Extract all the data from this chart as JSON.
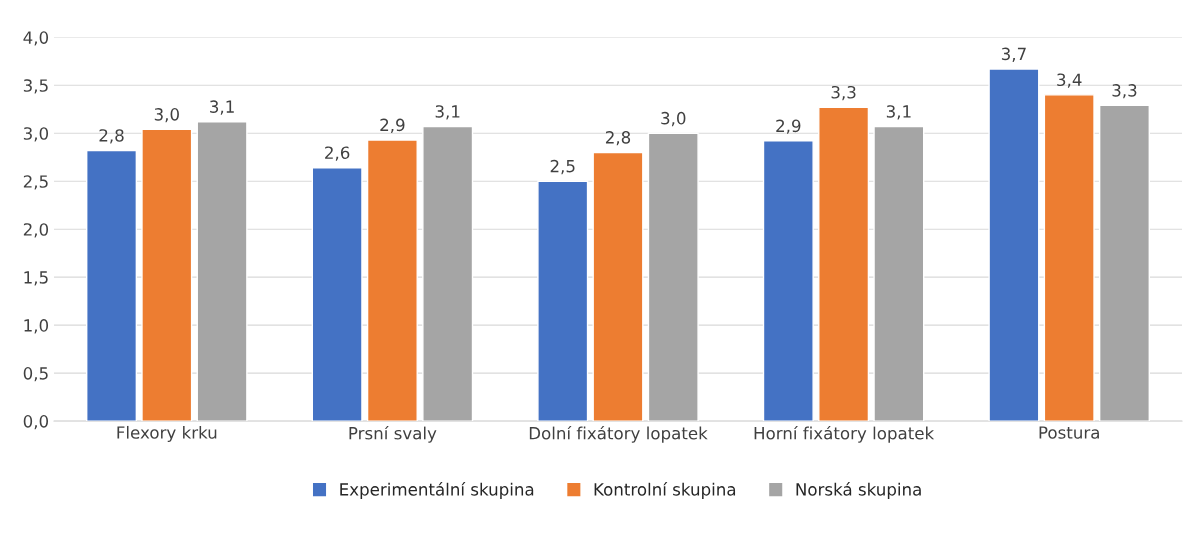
{
  "chart_data": {
    "type": "bar",
    "categories": [
      "Flexory krku",
      "Prsní svaly",
      "Dolní fixátory lopatek",
      "Horní fixátory lopatek",
      "Postura"
    ],
    "series": [
      {
        "name": "Experimentální skupina",
        "color": "#4472c4",
        "values": [
          2.82,
          2.64,
          2.5,
          2.92,
          3.67
        ],
        "value_labels": [
          "2,8",
          "2,6",
          "2,5",
          "2,9",
          "3,7"
        ]
      },
      {
        "name": "Kontrolní skupina",
        "color": "#ed7d31",
        "values": [
          3.04,
          2.93,
          2.8,
          3.27,
          3.4
        ],
        "value_labels": [
          "3,0",
          "2,9",
          "2,8",
          "3,3",
          "3,4"
        ]
      },
      {
        "name": "Norská skupina",
        "color": "#a5a5a5",
        "values": [
          3.12,
          3.07,
          3.0,
          3.07,
          3.29
        ],
        "value_labels": [
          "3,1",
          "3,1",
          "3,0",
          "3,1",
          "3,3"
        ]
      }
    ],
    "ylim": [
      0,
      4
    ],
    "yticks": [
      {
        "value": 0,
        "label": "0,0"
      },
      {
        "value": 0.5,
        "label": "0,5"
      },
      {
        "value": 1,
        "label": "1,0"
      },
      {
        "value": 1.5,
        "label": "1,5"
      },
      {
        "value": 2,
        "label": "2,0"
      },
      {
        "value": 2.5,
        "label": "2,5"
      },
      {
        "value": 3,
        "label": "3,0"
      },
      {
        "value": 3.5,
        "label": "3,5"
      },
      {
        "value": 4,
        "label": "4,0"
      }
    ],
    "grid": "y",
    "legend": "bottom"
  }
}
